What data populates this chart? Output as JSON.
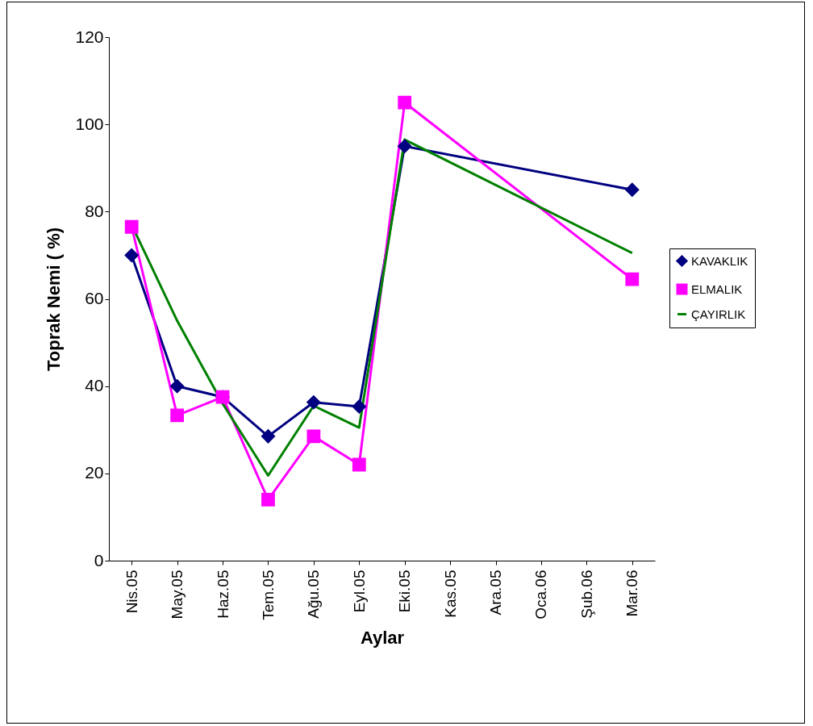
{
  "chart_data": {
    "type": "line",
    "xlabel": "Aylar",
    "ylabel": "Toprak Nemi ( %)",
    "categories": [
      "Nis.05",
      "May.05",
      "Haz.05",
      "Tem.05",
      "Ağu.05",
      "Eyl.05",
      "Eki.05",
      "Kas.05",
      "Ara.05",
      "Oca.06",
      "Şub.06",
      "Mar.06"
    ],
    "series": [
      {
        "name": "KAVAKLIK",
        "color": "#000080",
        "marker": "diamond",
        "values": [
          70,
          40,
          37.5,
          28.5,
          36.3,
          35.3,
          95,
          null,
          null,
          null,
          null,
          85
        ]
      },
      {
        "name": "ELMALIK",
        "color": "#ff00ff",
        "marker": "square",
        "values": [
          76.5,
          33.3,
          37.5,
          14,
          28.5,
          22,
          105,
          null,
          null,
          null,
          null,
          64.5
        ]
      },
      {
        "name": "ÇAYIRLIK",
        "color": "#008000",
        "marker": "none",
        "values": [
          77,
          55,
          36,
          19.5,
          35.5,
          30.5,
          96.5,
          null,
          null,
          null,
          null,
          70.5
        ]
      }
    ],
    "ylim": [
      0,
      120
    ],
    "yticks": [
      0,
      20,
      40,
      60,
      80,
      100,
      120
    ],
    "grid": false,
    "legend": "right"
  }
}
